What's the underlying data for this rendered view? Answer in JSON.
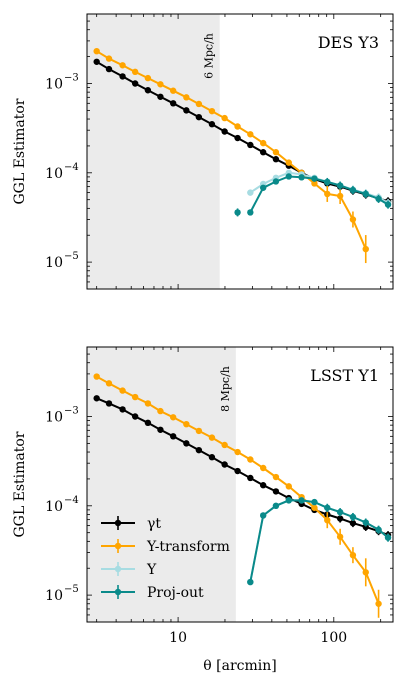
{
  "chart_data": [
    {
      "type": "line",
      "title": "DES Y3",
      "ylabel": "GGL Estimator",
      "xlabel": "",
      "log_x": true,
      "log_y": true,
      "xlim": [
        2.6,
        240
      ],
      "ylim": [
        5e-06,
        0.006
      ],
      "y_tick_labels": [
        "10",
        "10",
        "10"
      ],
      "y_tick_exponents": [
        "−3",
        "−4",
        "−5"
      ],
      "x_tick_labels": [],
      "shaded_region": {
        "x": [
          2.6,
          18.5
        ],
        "label": "6 Mpc/h"
      },
      "series": [
        {
          "name": "γt",
          "color": "#000000",
          "x": [
            3.0,
            3.6,
            4.4,
            5.3,
            6.4,
            7.7,
            9.3,
            11.3,
            13.6,
            16.5,
            19.9,
            24.1,
            29.1,
            35.2,
            42.5,
            51.4,
            62.1,
            75.1,
            90.8,
            109.8,
            132.7,
            160.4,
            193.9,
            223.0
          ],
          "y": [
            0.00175,
            0.00145,
            0.0012,
            0.001,
            0.00084,
            0.00071,
            0.0006,
            0.0005,
            0.00042,
            0.00035,
            0.00029,
            0.000245,
            0.000205,
            0.00017,
            0.000142,
            0.00012,
            0.0001,
            8.5e-05,
            7.6e-05,
            7e-05,
            6.3e-05,
            5.7e-05,
            5.2e-05,
            4.8e-05
          ]
        },
        {
          "name": "Y-transform",
          "color": "#FFA500",
          "x": [
            3.0,
            3.6,
            4.4,
            5.3,
            6.4,
            7.7,
            9.3,
            11.3,
            13.6,
            16.5,
            19.9,
            24.1,
            29.1,
            35.2,
            42.5,
            51.4,
            62.1,
            75.1,
            90.8,
            109.8,
            132.7,
            160.4
          ],
          "y": [
            0.0023,
            0.0019,
            0.0016,
            0.00135,
            0.00115,
            0.00098,
            0.00083,
            0.0007,
            0.00059,
            0.00049,
            0.00041,
            0.00033,
            0.00027,
            0.000215,
            0.00017,
            0.00013,
            0.0001,
            7.6e-05,
            5.8e-05,
            5.5e-05,
            3e-05,
            1.4e-05
          ]
        },
        {
          "name": "Υ",
          "color": "#A7DCE2",
          "x": [
            29.1,
            35.2,
            42.5,
            51.4,
            62.1,
            75.1,
            90.8,
            109.8,
            132.7,
            160.4,
            193.9,
            223.0
          ],
          "y": [
            6e-05,
            7.5e-05,
            8.8e-05,
            0.0001,
            9.6e-05,
            8.8e-05,
            7.9e-05,
            7.2e-05,
            6.5e-05,
            5.9e-05,
            5.3e-05,
            4.6e-05
          ]
        },
        {
          "name": "Proj-out",
          "color": "#0A8A8A",
          "x": [
            29.1,
            35.2,
            42.5,
            51.4,
            62.1,
            75.1,
            90.8,
            109.8,
            132.7,
            160.4,
            193.9,
            223.0
          ],
          "y": [
            3.6e-05,
            6.8e-05,
            8e-05,
            9.1e-05,
            8.9e-05,
            8.6e-05,
            7.9e-05,
            7.2e-05,
            6.4e-05,
            5.8e-05,
            5.1e-05,
            4.4e-05
          ],
          "extra_points": [
            {
              "x": 24.1,
              "y": 3.6e-05
            }
          ]
        }
      ]
    },
    {
      "type": "line",
      "title": "LSST Y1",
      "ylabel": "GGL Estimator",
      "xlabel": "θ [arcmin]",
      "log_x": true,
      "log_y": true,
      "xlim": [
        2.6,
        240
      ],
      "ylim": [
        5e-06,
        0.006
      ],
      "y_tick_labels": [
        "10",
        "10",
        "10"
      ],
      "y_tick_exponents": [
        "−3",
        "−4",
        "−5"
      ],
      "x_tick_labels": [
        "10",
        "100"
      ],
      "shaded_region": {
        "x": [
          2.6,
          23.5
        ],
        "label": "8 Mpc/h"
      },
      "legend": {
        "position": "lower-left",
        "entries": [
          "γt",
          "Y-transform",
          "Υ",
          "Proj-out"
        ]
      },
      "series": [
        {
          "name": "γt",
          "color": "#000000",
          "x": [
            3.0,
            3.6,
            4.4,
            5.3,
            6.4,
            7.7,
            9.3,
            11.3,
            13.6,
            16.5,
            19.9,
            24.1,
            29.1,
            35.2,
            42.5,
            51.4,
            62.1,
            75.1,
            90.8,
            109.8,
            132.7,
            160.4,
            193.9,
            223.0
          ],
          "y": [
            0.0016,
            0.0014,
            0.0012,
            0.001,
            0.00085,
            0.00071,
            0.0006,
            0.0005,
            0.00042,
            0.00035,
            0.00029,
            0.000245,
            0.000205,
            0.00017,
            0.000145,
            0.000122,
            0.000105,
            9e-05,
            8e-05,
            7.2e-05,
            6.4e-05,
            5.8e-05,
            5.2e-05,
            4.7e-05
          ]
        },
        {
          "name": "Y-transform",
          "color": "#FFA500",
          "x": [
            3.0,
            3.6,
            4.4,
            5.3,
            6.4,
            7.7,
            9.3,
            11.3,
            13.6,
            16.5,
            19.9,
            24.1,
            29.1,
            35.2,
            42.5,
            51.4,
            62.1,
            75.1,
            90.8,
            109.8,
            132.7,
            160.4,
            193.9
          ],
          "y": [
            0.0028,
            0.00235,
            0.00195,
            0.00165,
            0.0014,
            0.00115,
            0.00098,
            0.00082,
            0.00069,
            0.00058,
            0.00048,
            0.0004,
            0.00033,
            0.000265,
            0.00021,
            0.000165,
            0.000125,
            9.5e-05,
            6.9e-05,
            4.5e-05,
            2.8e-05,
            1.8e-05,
            8e-06
          ]
        },
        {
          "name": "Υ",
          "color": "#A7DCE2",
          "x": [
            29.1,
            35.2,
            42.5,
            51.4,
            62.1,
            75.1,
            90.8,
            109.8,
            132.7,
            160.4,
            193.9,
            223.0
          ],
          "y": [
            1.4e-05,
            7.8e-05,
            0.0001,
            0.000115,
            0.000115,
            0.00011,
            9.5e-05,
            8.5e-05,
            7.5e-05,
            6.5e-05,
            5.4e-05,
            4.4e-05
          ]
        },
        {
          "name": "Proj-out",
          "color": "#0A8A8A",
          "x": [
            29.1,
            35.2,
            42.5,
            51.4,
            62.1,
            75.1,
            90.8,
            109.8,
            132.7,
            160.4,
            193.9,
            223.0
          ],
          "y": [
            1.4e-05,
            7.8e-05,
            0.0001,
            0.000115,
            0.000115,
            0.00011,
            9.5e-05,
            8.5e-05,
            7.5e-05,
            6.5e-05,
            5.4e-05,
            4.4e-05
          ]
        }
      ]
    }
  ]
}
